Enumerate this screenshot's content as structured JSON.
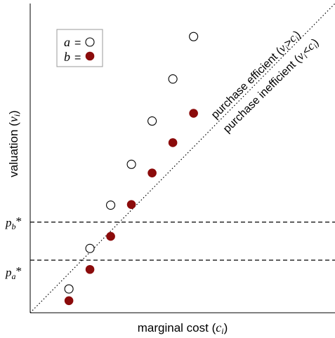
{
  "chart_data": {
    "type": "scatter",
    "xlabel": "marginal cost (",
    "xlabel_var": "c",
    "xlabel_sub": "i",
    "xlabel_close": ")",
    "ylabel": "valuation (",
    "ylabel_var": "v",
    "ylabel_sub": "i",
    "ylabel_close": ")",
    "xlim": [
      0,
      1
    ],
    "ylim": [
      0,
      1
    ],
    "grid": false,
    "legend_position": "top-left",
    "series": [
      {
        "name": "a",
        "marker": "open-circle",
        "color": "#000000",
        "x": [
          0.127,
          0.196,
          0.264,
          0.332,
          0.4,
          0.468,
          0.536
        ],
        "y": [
          0.077,
          0.208,
          0.348,
          0.48,
          0.62,
          0.756,
          0.893
        ]
      },
      {
        "name": "b",
        "marker": "filled-circle",
        "color": "#8b0b0b",
        "x": [
          0.127,
          0.196,
          0.264,
          0.332,
          0.4,
          0.468,
          0.536
        ],
        "y": [
          0.039,
          0.14,
          0.247,
          0.35,
          0.452,
          0.55,
          0.645
        ]
      }
    ],
    "reference_lines": {
      "diagonal": {
        "style": "dotted",
        "from": [
          0,
          0
        ],
        "to": [
          1,
          1
        ]
      },
      "horizontal": [
        {
          "name": "p_b",
          "y": 0.293,
          "style": "dashed"
        },
        {
          "name": "p_a",
          "y": 0.17,
          "style": "dashed"
        }
      ]
    },
    "annotations": {
      "efficient_prefix": "purchase efficient (",
      "efficient_var": "v",
      "efficient_sub": "i",
      "efficient_op": ">",
      "efficient_rhs": "c",
      "efficient_rhs_sub": "i",
      "efficient_close": ")",
      "inefficient_prefix": "purchase inefficient (",
      "inefficient_var": "v",
      "inefficient_sub": "i",
      "inefficient_op": "<",
      "inefficient_rhs": "c",
      "inefficient_rhs_sub": "i",
      "inefficient_close": ")"
    },
    "threshold_labels": {
      "pb_letter": "p",
      "pb_sub": "b",
      "pb_star": "*",
      "pa_letter": "p",
      "pa_sub": "a",
      "pa_star": "*"
    },
    "legend": {
      "a_label": "a",
      "b_label": "b",
      "equals": "="
    }
  }
}
